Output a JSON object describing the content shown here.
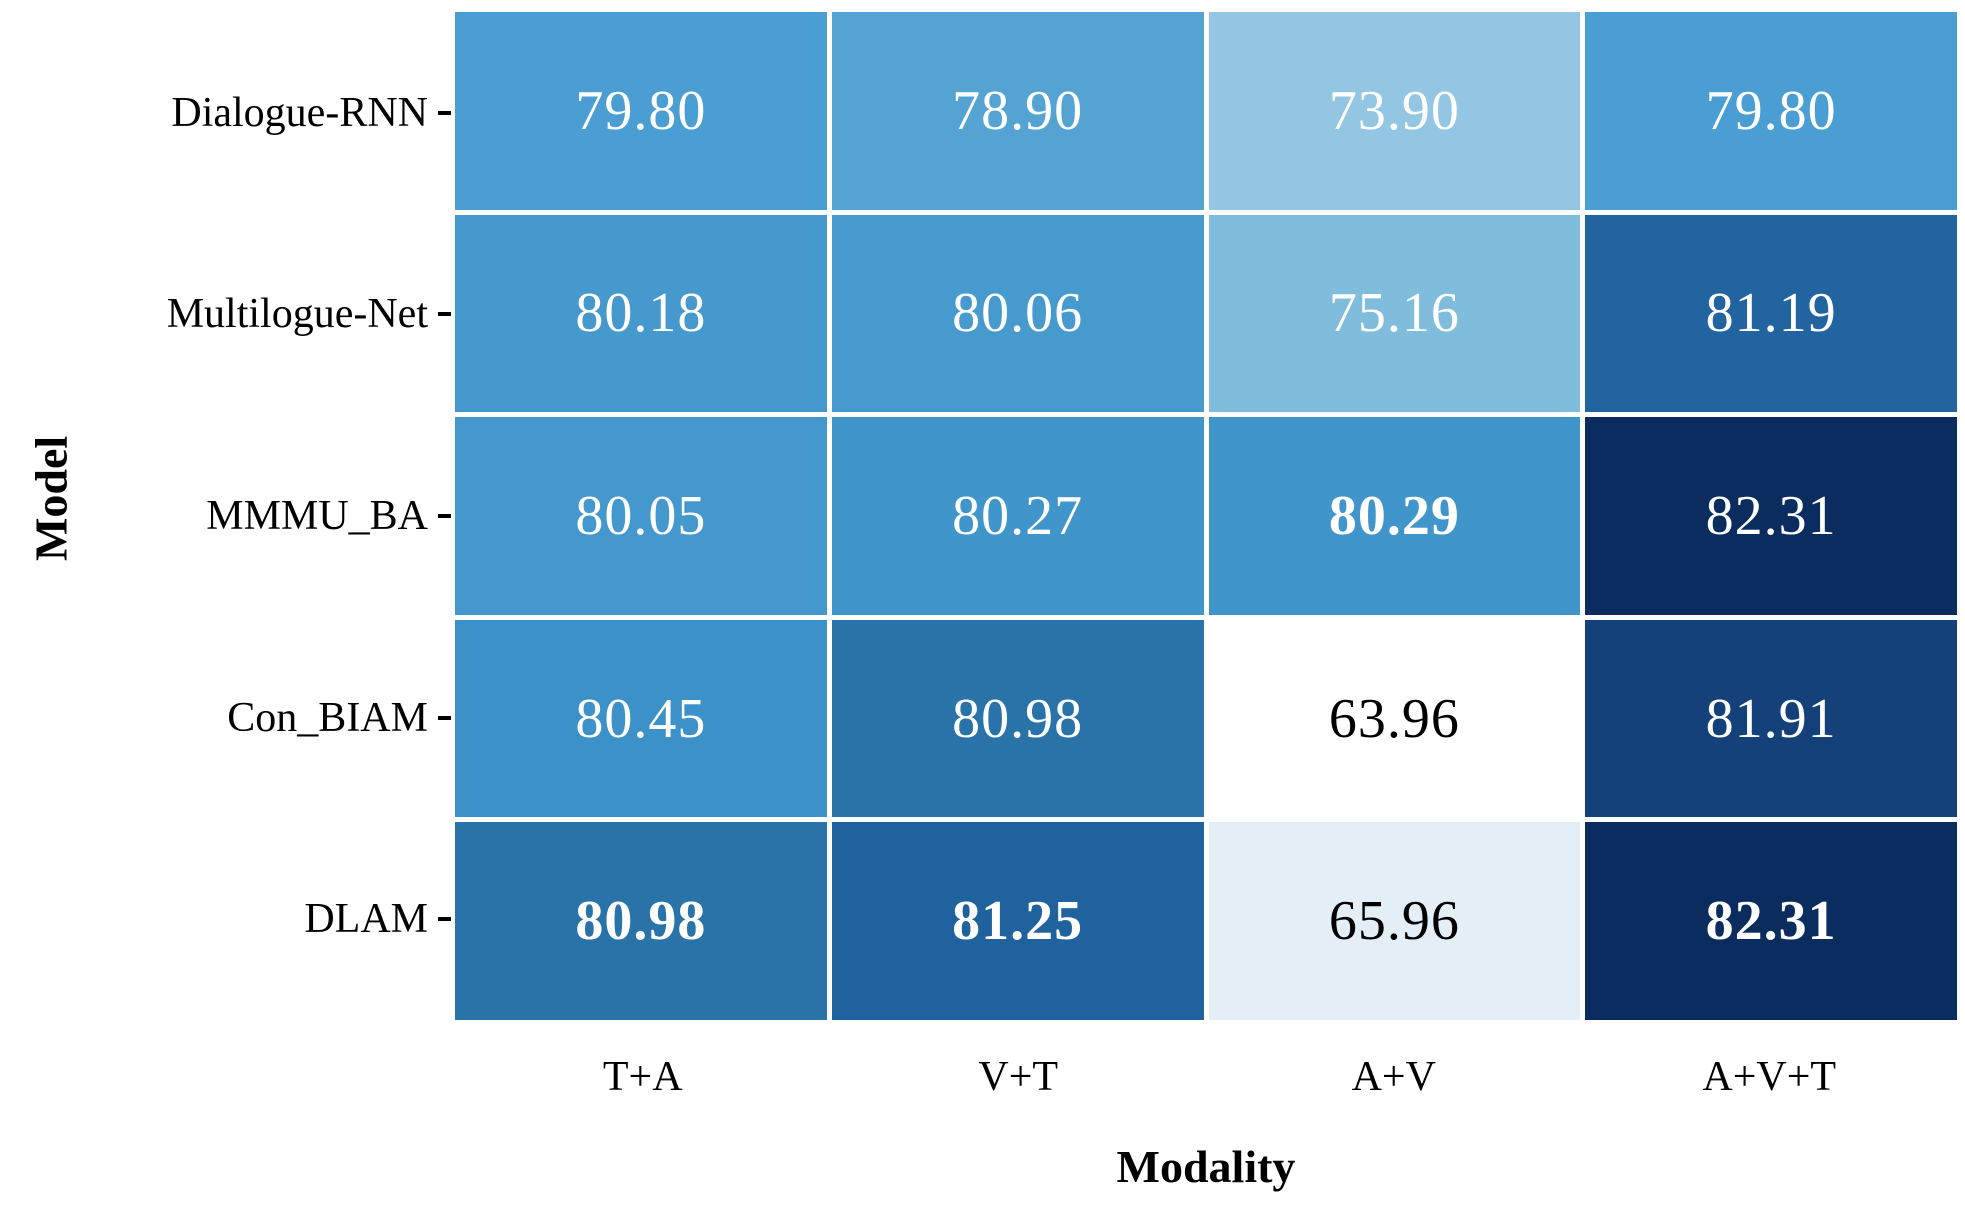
{
  "chart_data": {
    "type": "heatmap",
    "xlabel": "Modality",
    "ylabel": "Model",
    "x_categories": [
      "T+A",
      "V+T",
      "A+V",
      "A+V+T"
    ],
    "y_categories": [
      "Dialogue-RNN",
      "Multilogue-Net",
      "MMMU_BA",
      "Con_BIAM",
      "DLAM"
    ],
    "colormap": "Blues",
    "value_range": [
      63.96,
      82.31
    ],
    "grid_gap_color": "#ffffff",
    "rows": [
      {
        "model": "Dialogue-RNN",
        "cells": [
          {
            "value": 79.8,
            "label": "79.80",
            "bg": "#4a9ed3",
            "fg": "#ffffff",
            "bold": false
          },
          {
            "value": 78.9,
            "label": "78.90",
            "bg": "#55a3d3",
            "fg": "#ffffff",
            "bold": false
          },
          {
            "value": 73.9,
            "label": "73.90",
            "bg": "#93c6e2",
            "fg": "#ffffff",
            "bold": false
          },
          {
            "value": 79.8,
            "label": "79.80",
            "bg": "#4a9ed3",
            "fg": "#ffffff",
            "bold": false
          }
        ]
      },
      {
        "model": "Multilogue-Net",
        "cells": [
          {
            "value": 80.18,
            "label": "80.18",
            "bg": "#4599cd",
            "fg": "#ffffff",
            "bold": false
          },
          {
            "value": 80.06,
            "label": "80.06",
            "bg": "#469acd",
            "fg": "#ffffff",
            "bold": false
          },
          {
            "value": 75.16,
            "label": "75.16",
            "bg": "#80bddd",
            "fg": "#ffffff",
            "bold": false
          },
          {
            "value": 81.19,
            "label": "81.19",
            "bg": "#2264a0",
            "fg": "#ffffff",
            "bold": false
          }
        ]
      },
      {
        "model": "MMMU_BA",
        "cells": [
          {
            "value": 80.05,
            "label": "80.05",
            "bg": "#4498cd",
            "fg": "#ffffff",
            "bold": false
          },
          {
            "value": 80.27,
            "label": "80.27",
            "bg": "#4095cb",
            "fg": "#ffffff",
            "bold": false
          },
          {
            "value": 80.29,
            "label": "80.29",
            "bg": "#4095cb",
            "fg": "#ffffff",
            "bold": true
          },
          {
            "value": 82.31,
            "label": "82.31",
            "bg": "#0a2c5f",
            "fg": "#ffffff",
            "bold": false
          }
        ]
      },
      {
        "model": "Con_BIAM",
        "cells": [
          {
            "value": 80.45,
            "label": "80.45",
            "bg": "#3c92c8",
            "fg": "#ffffff",
            "bold": false
          },
          {
            "value": 80.98,
            "label": "80.98",
            "bg": "#2a73a9",
            "fg": "#ffffff",
            "bold": false
          },
          {
            "value": 63.96,
            "label": "63.96",
            "bg": "#ffffff",
            "fg": "#000000",
            "bold": false
          },
          {
            "value": 81.91,
            "label": "81.91",
            "bg": "#15417b",
            "fg": "#ffffff",
            "bold": false
          }
        ]
      },
      {
        "model": "DLAM",
        "cells": [
          {
            "value": 80.98,
            "label": "80.98",
            "bg": "#2a73a9",
            "fg": "#ffffff",
            "bold": true
          },
          {
            "value": 81.25,
            "label": "81.25",
            "bg": "#20629e",
            "fg": "#ffffff",
            "bold": true
          },
          {
            "value": 65.96,
            "label": "65.96",
            "bg": "#e3eef7",
            "fg": "#000000",
            "bold": false
          },
          {
            "value": 82.31,
            "label": "82.31",
            "bg": "#0a2c5f",
            "fg": "#ffffff",
            "bold": true
          }
        ]
      }
    ]
  }
}
